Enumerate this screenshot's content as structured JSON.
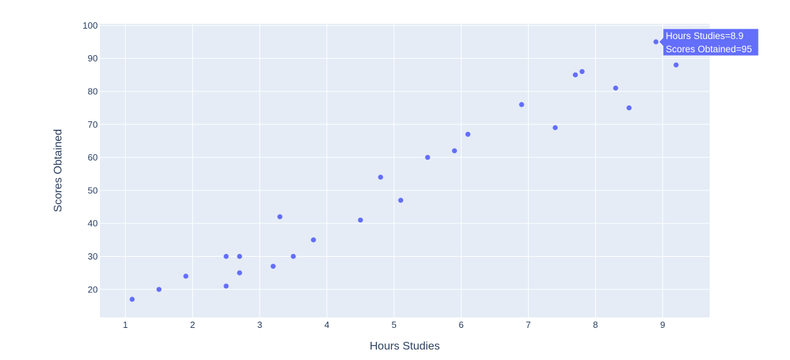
{
  "chart_data": {
    "type": "scatter",
    "title": "",
    "xlabel": "Hours Studies",
    "ylabel": "Scores Obtained",
    "xlim": [
      0.62,
      9.7
    ],
    "ylim": [
      11.5,
      100.5
    ],
    "xticks": [
      1,
      2,
      3,
      4,
      5,
      6,
      7,
      8,
      9
    ],
    "yticks": [
      20,
      30,
      40,
      50,
      60,
      70,
      80,
      90,
      100
    ],
    "grid": true,
    "colors": {
      "marker": "#636efa",
      "plot_bg": "#e5ecf6",
      "grid": "#ffffff",
      "tick_text": "#2a3f5f",
      "hover_bg": "#636efa",
      "hover_text": "#ffffff"
    },
    "points": [
      {
        "x": 1.1,
        "y": 17
      },
      {
        "x": 1.5,
        "y": 20
      },
      {
        "x": 1.9,
        "y": 24
      },
      {
        "x": 2.5,
        "y": 30
      },
      {
        "x": 2.5,
        "y": 21
      },
      {
        "x": 2.7,
        "y": 30
      },
      {
        "x": 2.7,
        "y": 25
      },
      {
        "x": 3.2,
        "y": 27
      },
      {
        "x": 3.3,
        "y": 42
      },
      {
        "x": 3.5,
        "y": 30
      },
      {
        "x": 3.8,
        "y": 35
      },
      {
        "x": 4.5,
        "y": 41
      },
      {
        "x": 4.8,
        "y": 54
      },
      {
        "x": 5.1,
        "y": 47
      },
      {
        "x": 5.5,
        "y": 60
      },
      {
        "x": 5.9,
        "y": 62
      },
      {
        "x": 6.1,
        "y": 67
      },
      {
        "x": 6.9,
        "y": 76
      },
      {
        "x": 7.4,
        "y": 69
      },
      {
        "x": 7.7,
        "y": 85
      },
      {
        "x": 7.8,
        "y": 86
      },
      {
        "x": 8.3,
        "y": 81
      },
      {
        "x": 8.5,
        "y": 75
      },
      {
        "x": 8.9,
        "y": 95
      },
      {
        "x": 9.2,
        "y": 88
      }
    ],
    "hover": {
      "point_index": 23,
      "line1": "Hours Studies=8.9",
      "line2": "Scores Obtained=95"
    }
  }
}
